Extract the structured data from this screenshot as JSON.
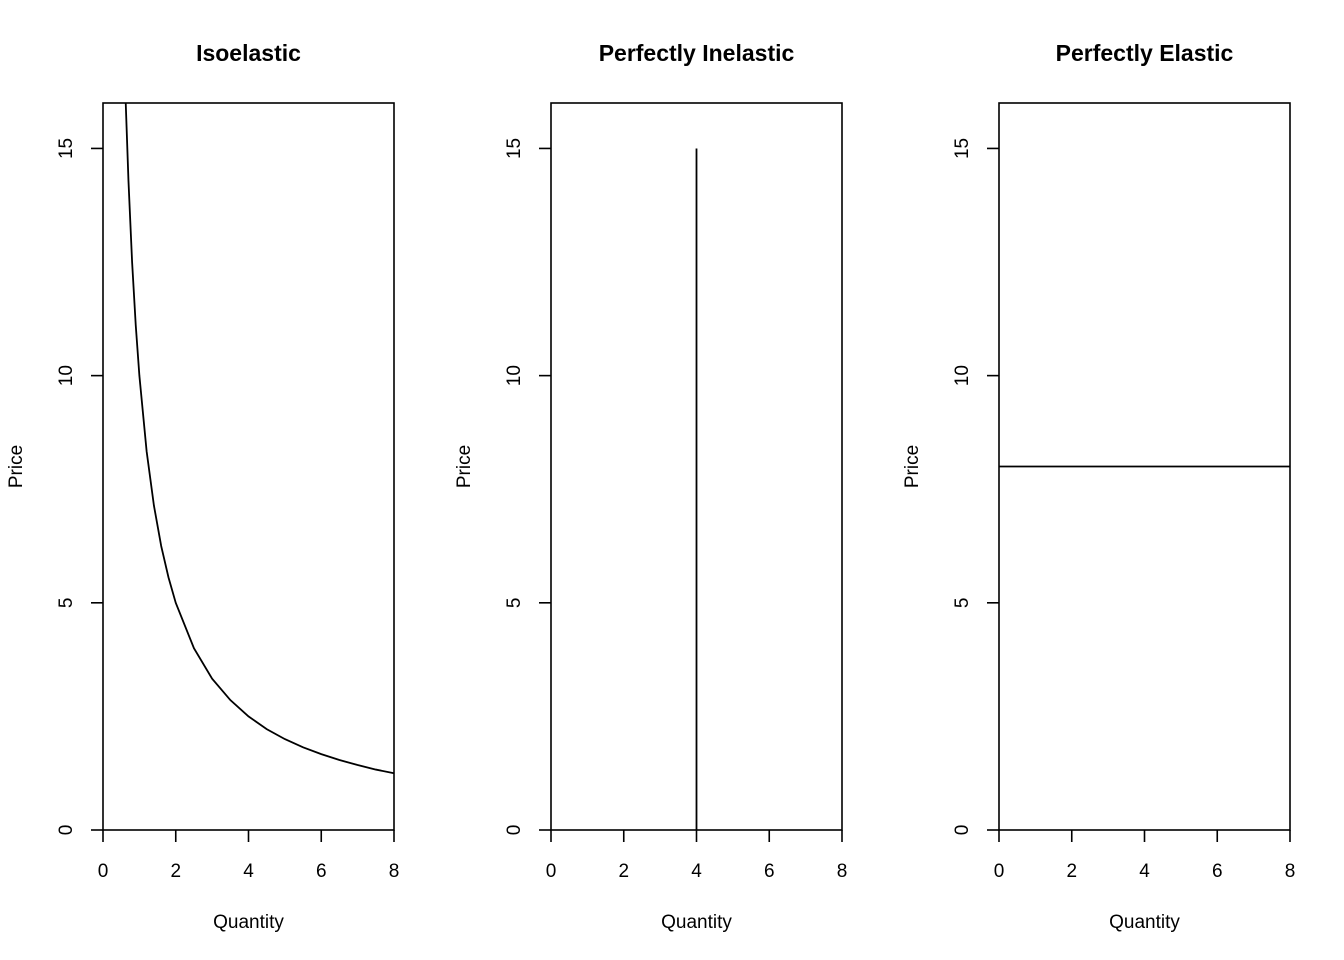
{
  "chart_data": [
    {
      "type": "line",
      "title": "Isoelastic",
      "xlabel": "Quantity",
      "ylabel": "Price",
      "xlim": [
        0,
        8
      ],
      "ylim": [
        0,
        16
      ],
      "x_ticks": [
        0,
        2,
        4,
        6,
        8
      ],
      "y_ticks": [
        0,
        5,
        10,
        15
      ],
      "grid": false,
      "series": [
        {
          "x": [
            0.625,
            0.7,
            0.8,
            0.9,
            1.0,
            1.2,
            1.4,
            1.6,
            1.8,
            2.0,
            2.5,
            3.0,
            3.5,
            4.0,
            4.5,
            5.0,
            5.5,
            6.0,
            6.5,
            7.0,
            7.5,
            8.0
          ],
          "y": [
            16.0,
            14.29,
            12.5,
            11.11,
            10.0,
            8.33,
            7.14,
            6.25,
            5.56,
            5.0,
            4.0,
            3.33,
            2.86,
            2.5,
            2.22,
            2.0,
            1.82,
            1.67,
            1.54,
            1.43,
            1.33,
            1.25
          ]
        }
      ]
    },
    {
      "type": "line",
      "title": "Perfectly Inelastic",
      "xlabel": "Quantity",
      "ylabel": "Price",
      "xlim": [
        0,
        8
      ],
      "ylim": [
        0,
        16
      ],
      "x_ticks": [
        0,
        2,
        4,
        6,
        8
      ],
      "y_ticks": [
        0,
        5,
        10,
        15
      ],
      "grid": false,
      "series": [
        {
          "x": [
            4,
            4
          ],
          "y": [
            0,
            15
          ]
        }
      ]
    },
    {
      "type": "line",
      "title": "Perfectly Elastic",
      "xlabel": "Quantity",
      "ylabel": "Price",
      "xlim": [
        0,
        8
      ],
      "ylim": [
        0,
        16
      ],
      "x_ticks": [
        0,
        2,
        4,
        6,
        8
      ],
      "y_ticks": [
        0,
        5,
        10,
        15
      ],
      "grid": false,
      "series": [
        {
          "x": [
            0,
            8
          ],
          "y": [
            8,
            8
          ]
        }
      ]
    }
  ]
}
